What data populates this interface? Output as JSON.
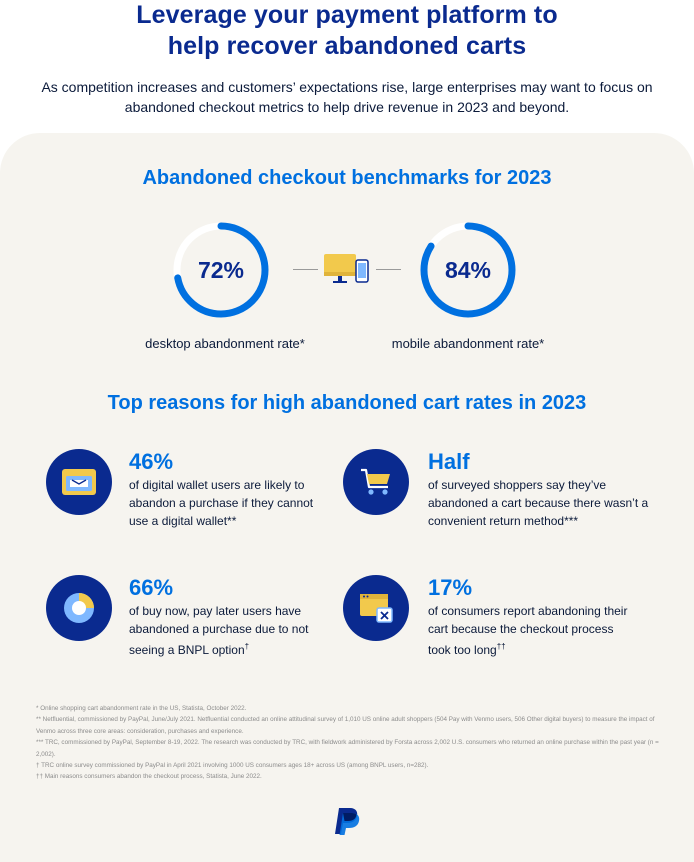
{
  "header": {
    "title_line1": "Leverage your payment platform to",
    "title_line2": "help recover abandoned carts",
    "intro": "As competition increases and customers’ expectations rise, large enterprises may want to focus on abandoned checkout metrics to help drive revenue in 2023 and beyond."
  },
  "benchmarks": {
    "heading": "Abandoned checkout benchmarks for 2023",
    "desktop": {
      "value": "72%",
      "fraction": 0.72,
      "caption": "desktop abandonment rate*"
    },
    "mobile": {
      "value": "84%",
      "fraction": 0.84,
      "caption": "mobile abandonment rate*"
    },
    "device_icon": "desktop-and-phone-icon"
  },
  "reasons": {
    "heading": "Top reasons for high abandoned cart rates in 2023",
    "items": [
      {
        "stat": "46%",
        "text": "of digital wallet users are likely to abandon a purchase if they cannot use a digital wallet**",
        "icon": "wallet-icon"
      },
      {
        "stat": "Half",
        "text": "of surveyed shoppers say they’ve abandoned a cart because there wasn’t a convenient return method***",
        "icon": "shopping-cart-icon"
      },
      {
        "stat": "66%",
        "text": "of buy now, pay later users have abandoned a purchase due to not seeing a BNPL option",
        "sup": "†",
        "icon": "pie-chart-icon"
      },
      {
        "stat": "17%",
        "text": "of consumers report abandoning their cart because the checkout process took too long",
        "sup": "††",
        "icon": "browser-window-close-icon"
      }
    ]
  },
  "footnotes": [
    "* Online shopping cart abandonment rate in the US, Statista, October 2022.",
    "** Netfluential, commissioned by PayPal, June/July 2021. Netfluential conducted an online attitudinal survey of 1,010 US online adult shoppers (504 Pay with Venmo users, 506 Other digital buyers) to measure the impact of Venmo across three core areas: consideration, purchases and experience.",
    "*** TRC, commissioned by PayPal, September 8-19, 2022. The research was conducted by TRC, with fieldwork administered by Forsta across 2,002 U.S. consumers who returned an online purchase within the past year (n = 2,002).",
    "† TRC online survey commissioned by PayPal in April 2021 involving 1000 US consumers  ages 18+ across US  (among BNPL users, n=282).",
    "†† Main reasons consumers abandon the checkout process, Statista, June 2022."
  ],
  "colors": {
    "title": "#0a2a8f",
    "accent": "#0070e0",
    "panel": "#f6f4ef",
    "icon_circle": "#0a2a8f",
    "ring_track": "#ffffff",
    "ring_fill": "#0070e0"
  },
  "logo": "paypal-logo"
}
